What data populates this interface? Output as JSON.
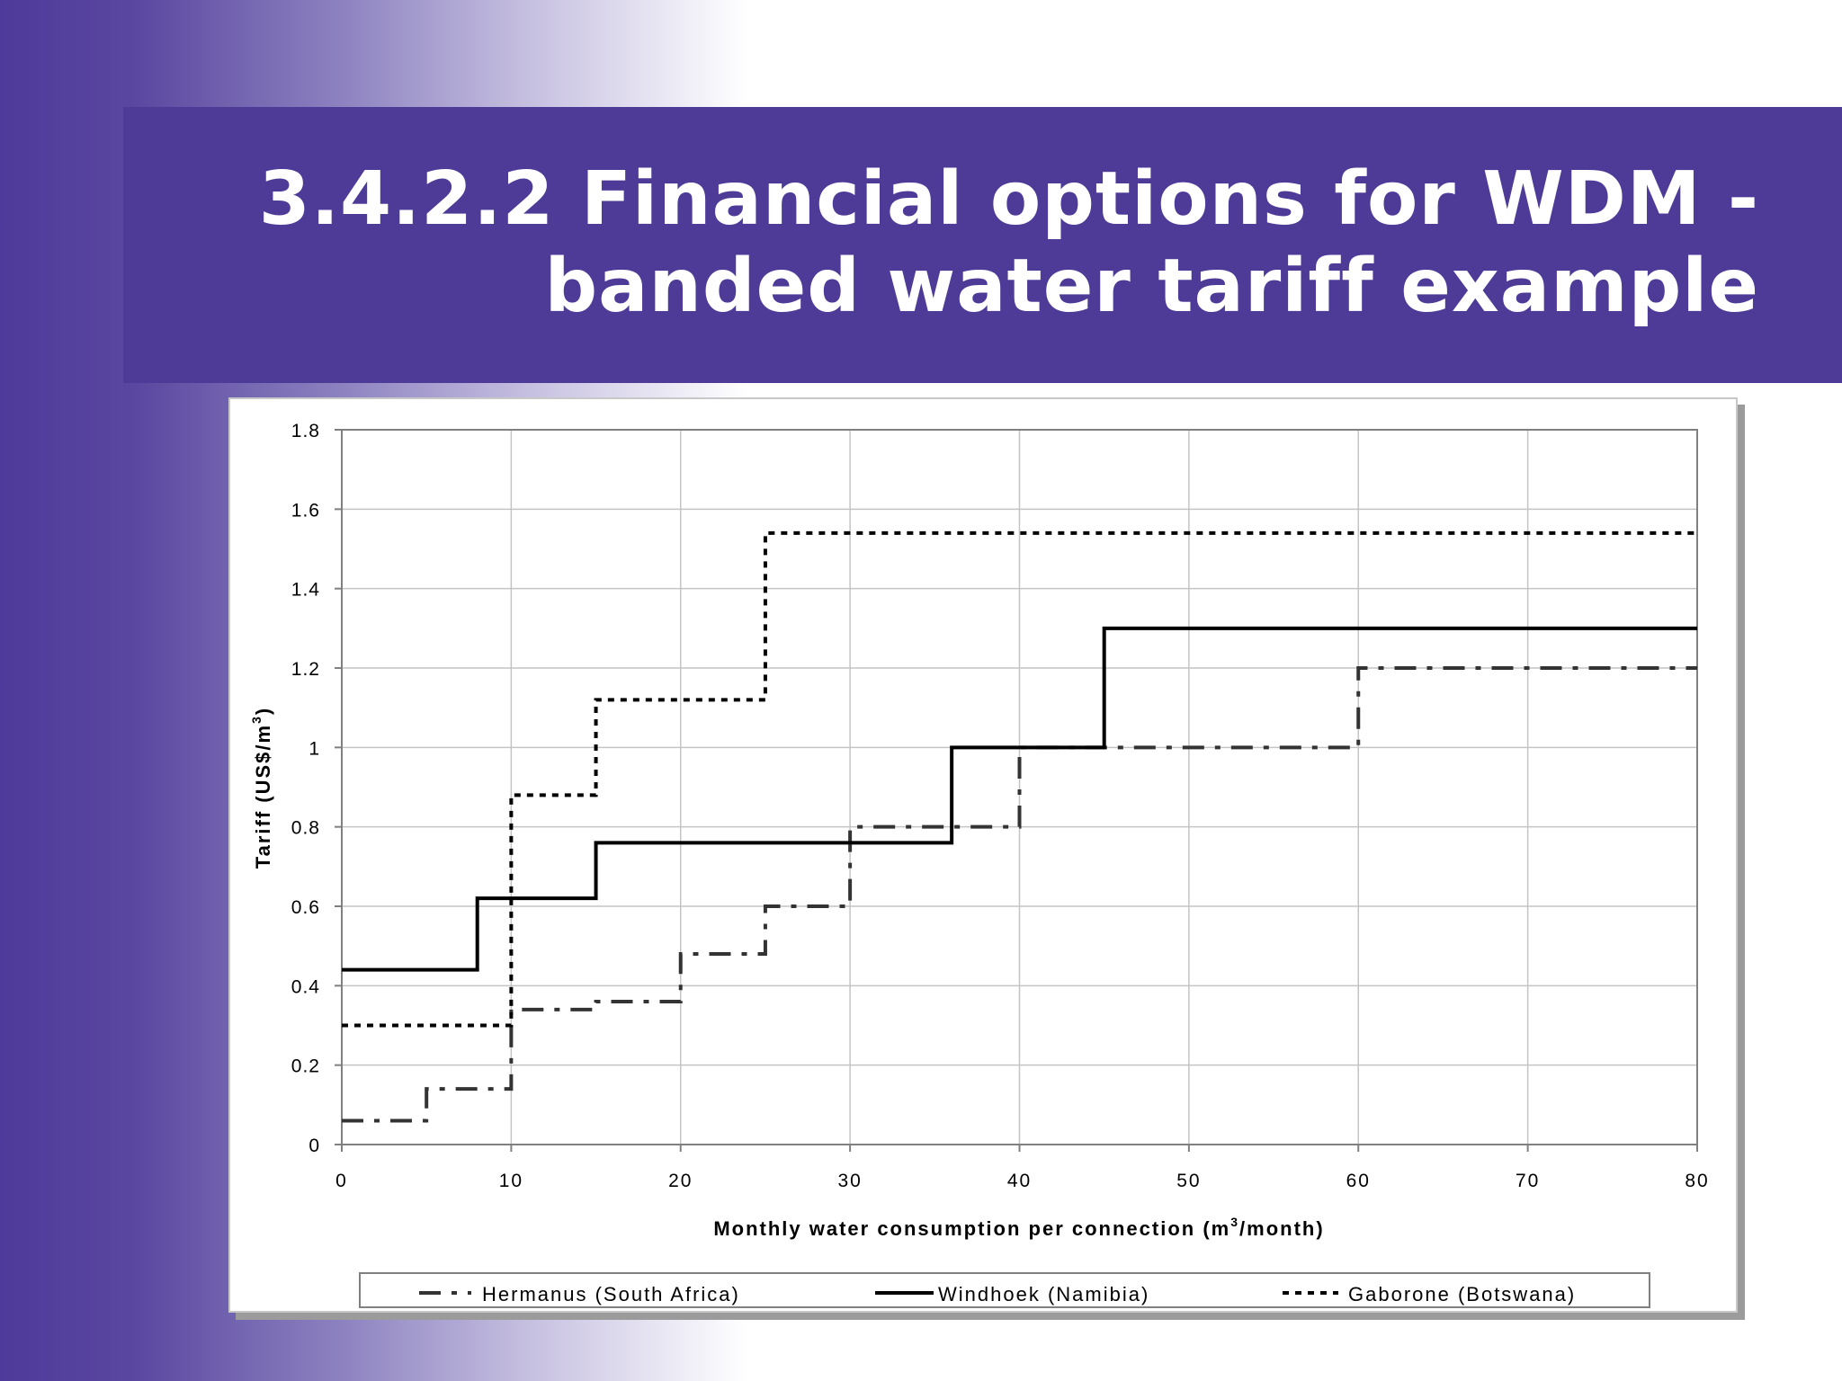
{
  "slide": {
    "title_line1": "3.4.2.2 Financial options for WDM -",
    "title_line2": "banded water tariff example",
    "band_color": "#4e3a97"
  },
  "chart_data": {
    "type": "line",
    "step": true,
    "xlabel_main": "Monthly water consumption per connection (m",
    "xlabel_sup": "3",
    "xlabel_end": "/month)",
    "ylabel_main": "Tariff (US$/m",
    "ylabel_sup": "3",
    "ylabel_end": ")",
    "xlim": [
      0,
      80
    ],
    "ylim": [
      0,
      1.8
    ],
    "xticks": [
      "0",
      "10",
      "20",
      "30",
      "40",
      "50",
      "60",
      "70",
      "80"
    ],
    "yticks": [
      "0",
      "0.2",
      "0.4",
      "0.6",
      "0.8",
      "1",
      "1.2",
      "1.4",
      "1.6",
      "1.8"
    ],
    "grid": true,
    "legend_position": "bottom",
    "series": [
      {
        "name": "Hermanus (South Africa)",
        "dash": "dash-dot",
        "color": "#333333",
        "steps": [
          [
            0,
            5,
            0.06
          ],
          [
            5,
            10,
            0.14
          ],
          [
            10,
            15,
            0.34
          ],
          [
            15,
            20,
            0.36
          ],
          [
            20,
            25,
            0.48
          ],
          [
            25,
            30,
            0.6
          ],
          [
            30,
            40,
            0.8
          ],
          [
            40,
            60,
            1.0
          ],
          [
            60,
            80,
            1.2
          ]
        ]
      },
      {
        "name": "Windhoek (Namibia)",
        "dash": "solid",
        "color": "#000000",
        "steps": [
          [
            0,
            8,
            0.44
          ],
          [
            8,
            15,
            0.62
          ],
          [
            15,
            36,
            0.76
          ],
          [
            36,
            45,
            1.0
          ],
          [
            45,
            80,
            1.3
          ]
        ]
      },
      {
        "name": "Gaborone (Botswana)",
        "dash": "dotted",
        "color": "#000000",
        "steps": [
          [
            0,
            10,
            0.3
          ],
          [
            10,
            15,
            0.88
          ],
          [
            15,
            25,
            1.12
          ],
          [
            25,
            80,
            1.54
          ]
        ]
      }
    ]
  }
}
